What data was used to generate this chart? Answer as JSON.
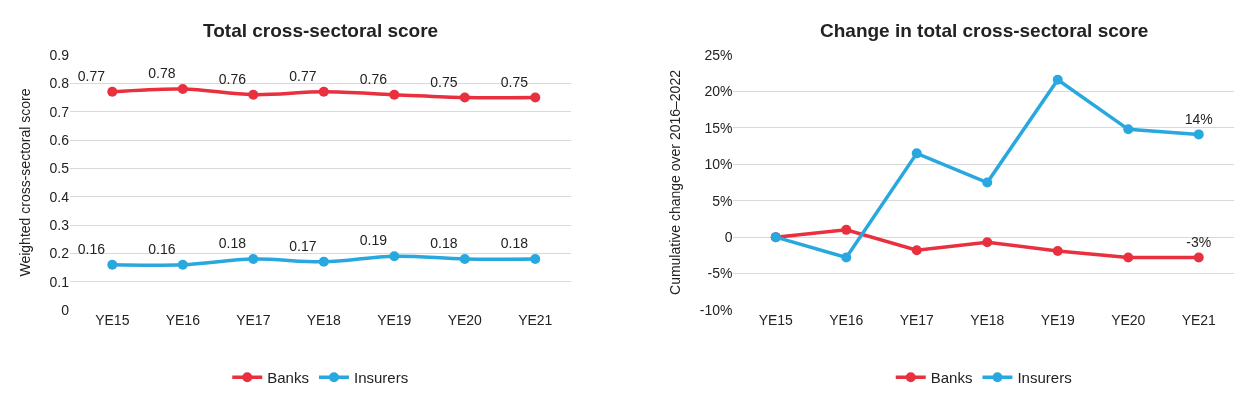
{
  "chart_data": [
    {
      "type": "line",
      "title": "Total cross-sectoral score",
      "ylabel": "Weighted cross-sectoral score",
      "categories": [
        "YE15",
        "YE16",
        "YE17",
        "YE18",
        "YE19",
        "YE20",
        "YE21"
      ],
      "series": [
        {
          "name": "Banks",
          "color": "#e8303f",
          "values": [
            0.77,
            0.78,
            0.76,
            0.77,
            0.76,
            0.75,
            0.75
          ]
        },
        {
          "name": "Insurers",
          "color": "#29a8e0",
          "values": [
            0.16,
            0.16,
            0.18,
            0.17,
            0.19,
            0.18,
            0.18
          ]
        }
      ],
      "ylim": [
        0,
        0.9
      ],
      "yticks": [
        0,
        0.1,
        0.2,
        0.3,
        0.4,
        0.5,
        0.6,
        0.7,
        0.8,
        0.9
      ],
      "data_labels": true,
      "grid": "y",
      "legend": "bottom",
      "marker": "circle",
      "line_style": "solid"
    },
    {
      "type": "line",
      "title": "Change in total cross-sectoral score",
      "ylabel": "Cumulative change over 2016–2022",
      "categories": [
        "YE15",
        "YE16",
        "YE17",
        "YE18",
        "YE19",
        "YE20",
        "YE21"
      ],
      "series": [
        {
          "name": "Banks",
          "color": "#e8303f",
          "values": [
            0,
            1,
            -1.8,
            -0.7,
            -1.9,
            -2.8,
            -2.8
          ],
          "value_labels": [
            null,
            null,
            null,
            null,
            null,
            null,
            "-3%"
          ]
        },
        {
          "name": "Insurers",
          "color": "#29a8e0",
          "values": [
            0,
            -2.8,
            11.5,
            7.5,
            21.6,
            14.8,
            14.1
          ],
          "value_labels": [
            null,
            null,
            null,
            null,
            null,
            null,
            "14%"
          ]
        }
      ],
      "ylim": [
        -10,
        25
      ],
      "yticks": [
        {
          "value": -10,
          "label": "-10%"
        },
        {
          "value": -5,
          "label": "-5%"
        },
        0,
        {
          "value": 5,
          "label": "5%"
        },
        {
          "value": 10,
          "label": "10%"
        },
        {
          "value": 15,
          "label": "15%"
        },
        {
          "value": 20,
          "label": "20%"
        },
        {
          "value": 25,
          "label": "25%"
        }
      ],
      "grid": "y",
      "legend": "bottom",
      "marker": "circle",
      "line_style": "solid"
    }
  ]
}
